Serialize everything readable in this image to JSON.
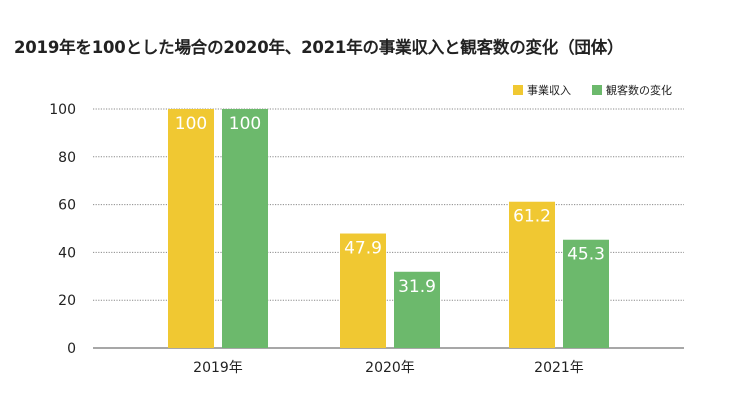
{
  "chart_data": {
    "type": "bar",
    "title": "2019年を100とした場合の2020年、2021年の事業収入と観客数の変化（団体）",
    "categories": [
      "2019年",
      "2020年",
      "2021年"
    ],
    "series": [
      {
        "name": "事業収入",
        "values": [
          100,
          47.9,
          61.2
        ],
        "value_labels": [
          "100",
          "47.9",
          "61.2"
        ],
        "color": "#f0c832"
      },
      {
        "name": "観客数の変化",
        "values": [
          100,
          31.9,
          45.3
        ],
        "value_labels": [
          "100",
          "31.9",
          "45.3"
        ],
        "color": "#6cb96c"
      }
    ],
    "y_ticks": [
      0,
      20,
      40,
      60,
      80,
      100
    ],
    "y_tick_labels": [
      "0",
      "20",
      "40",
      "60",
      "80",
      "100"
    ],
    "ylim": [
      0,
      100
    ],
    "grid": true,
    "legend": "top-right",
    "xlabel": "",
    "ylabel": "",
    "gridColor": "#8a8a8a"
  }
}
